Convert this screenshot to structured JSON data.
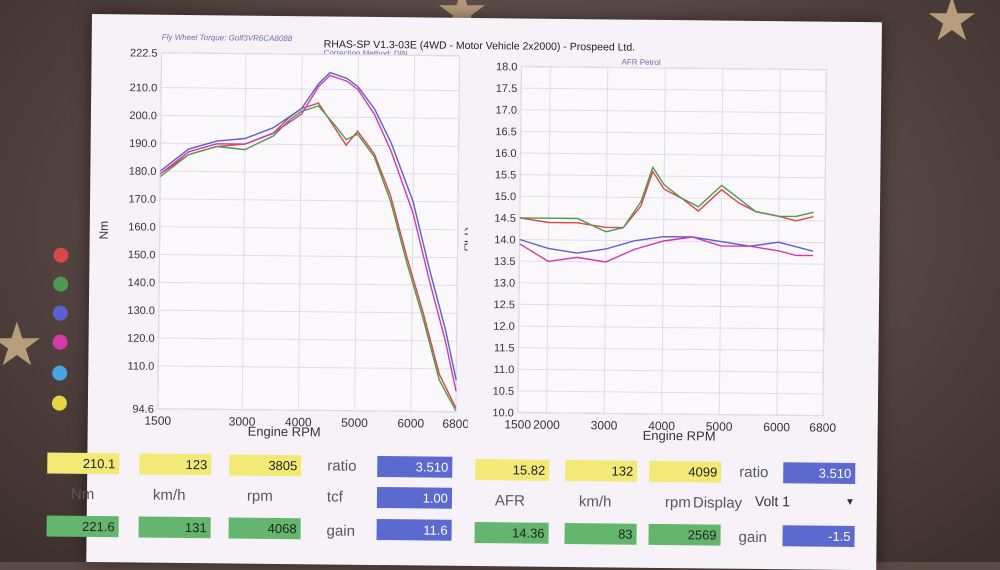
{
  "header": {
    "title": "RHAS-SP V1.3-03E  (4WD - Motor Vehicle 2x2000) - Prospeed Ltd.",
    "subtitle_left": "Fly Wheel Torque: Golf3VR6CA8088",
    "correction": "Correction Method: DIN",
    "right_panel_title": "AFR Petrol"
  },
  "colors": {
    "red": "#d94848",
    "green": "#4f9a52",
    "blue": "#5c5fd0",
    "magenta": "#d23aa8",
    "cyan": "#4aa3e0",
    "yellow": "#e8d542"
  },
  "chart_data": [
    {
      "type": "line",
      "title": "",
      "xlabel": "Engine RPM",
      "ylabel": "Nm",
      "xlim": [
        1500,
        6800
      ],
      "ylim": [
        94.6,
        222.5
      ],
      "x_ticks": [
        "1500",
        "3000",
        "4000",
        "5000",
        "6000",
        "6800"
      ],
      "y_ticks": [
        "222.5",
        "210.0",
        "200.0",
        "190.0",
        "180.0",
        "170.0",
        "160.0",
        "150.0",
        "140.0",
        "130.0",
        "120.0",
        "110.0",
        "94.6"
      ],
      "grid": true,
      "series": [
        {
          "color": "red",
          "x": [
            1500,
            2000,
            2500,
            3000,
            3500,
            3800,
            4000,
            4300,
            4600,
            4800,
            5000,
            5300,
            5600,
            5900,
            6200,
            6500,
            6800
          ],
          "y": [
            179,
            186,
            189,
            190,
            194,
            200,
            203,
            205,
            196,
            190,
            195,
            187,
            172,
            150,
            130,
            108,
            96
          ]
        },
        {
          "color": "green",
          "x": [
            1500,
            2000,
            2500,
            3000,
            3500,
            3800,
            4000,
            4300,
            4600,
            4800,
            5000,
            5300,
            5600,
            5900,
            6200,
            6500,
            6800
          ],
          "y": [
            178,
            186,
            189,
            188,
            193,
            199,
            202,
            204,
            197,
            192,
            194,
            186,
            170,
            148,
            128,
            106,
            95
          ]
        },
        {
          "color": "blue",
          "x": [
            1500,
            2000,
            2500,
            3000,
            3500,
            4000,
            4300,
            4500,
            4800,
            5000,
            5300,
            5600,
            6000,
            6300,
            6600,
            6800
          ],
          "y": [
            180,
            188,
            191,
            192,
            196,
            203,
            212,
            216,
            214,
            211,
            203,
            191,
            170,
            146,
            124,
            106
          ]
        },
        {
          "color": "magenta",
          "x": [
            1500,
            2000,
            2500,
            3000,
            3500,
            4000,
            4300,
            4500,
            4800,
            5000,
            5300,
            5600,
            6000,
            6300,
            6600,
            6800
          ],
          "y": [
            179,
            187,
            190,
            190,
            194,
            201,
            211,
            215,
            213,
            210,
            201,
            188,
            166,
            142,
            120,
            102
          ]
        }
      ]
    },
    {
      "type": "line",
      "title": "AFR Petrol",
      "xlabel": "Engine RPM",
      "ylabel": "AFR",
      "xlim": [
        1500,
        6800
      ],
      "ylim": [
        10.0,
        18.0
      ],
      "x_ticks": [
        "1500",
        "2000",
        "3000",
        "4000",
        "5000",
        "6000",
        "6800"
      ],
      "y_ticks": [
        "18.0",
        "17.5",
        "17.0",
        "16.5",
        "16.0",
        "15.5",
        "15.0",
        "14.5",
        "14.0",
        "13.5",
        "13.0",
        "12.5",
        "12.0",
        "11.5",
        "11.0",
        "10.5",
        "10.0"
      ],
      "grid": true,
      "series": [
        {
          "color": "red",
          "x": [
            1500,
            2000,
            2500,
            3000,
            3300,
            3600,
            3800,
            4000,
            4300,
            4600,
            5000,
            5300,
            5600,
            6000,
            6300,
            6600
          ],
          "y": [
            14.5,
            14.4,
            14.4,
            14.3,
            14.3,
            14.8,
            15.6,
            15.2,
            15.0,
            14.7,
            15.2,
            14.9,
            14.7,
            14.6,
            14.5,
            14.6
          ]
        },
        {
          "color": "green",
          "x": [
            1500,
            2000,
            2500,
            3000,
            3300,
            3600,
            3800,
            4000,
            4300,
            4600,
            5000,
            5300,
            5600,
            6000,
            6300,
            6600
          ],
          "y": [
            14.5,
            14.5,
            14.5,
            14.2,
            14.3,
            14.9,
            15.7,
            15.3,
            15.0,
            14.8,
            15.3,
            15.0,
            14.7,
            14.6,
            14.6,
            14.7
          ]
        },
        {
          "color": "blue",
          "x": [
            1500,
            2000,
            2500,
            3000,
            3500,
            4000,
            4500,
            5000,
            5500,
            6000,
            6300,
            6600
          ],
          "y": [
            14.0,
            13.8,
            13.7,
            13.8,
            14.0,
            14.1,
            14.1,
            14.0,
            13.9,
            14.0,
            13.9,
            13.8
          ]
        },
        {
          "color": "magenta",
          "x": [
            1500,
            2000,
            2500,
            3000,
            3500,
            4000,
            4500,
            5000,
            5500,
            6000,
            6300,
            6600
          ],
          "y": [
            13.9,
            13.5,
            13.6,
            13.5,
            13.8,
            14.0,
            14.1,
            13.9,
            13.9,
            13.8,
            13.7,
            13.7
          ]
        }
      ]
    }
  ],
  "readouts": {
    "left": {
      "row1": [
        "210.1",
        "123",
        "3805"
      ],
      "row2": [
        "Nm",
        "km/h",
        "rpm"
      ],
      "row3": [
        "221.6",
        "131",
        "4068"
      ],
      "ratio_label": "ratio",
      "ratio_value": "3.510",
      "tcf_label": "tcf",
      "tcf_value": "1.00",
      "gain_label": "gain",
      "gain_value": "11.6"
    },
    "right": {
      "row1": [
        "15.82",
        "132",
        "4099"
      ],
      "row2": [
        "AFR",
        "km/h",
        "rpm"
      ],
      "row3": [
        "14.36",
        "83",
        "2569"
      ],
      "ratio_label": "ratio",
      "ratio_value": "3.510",
      "display_label": "Display",
      "display_value": "Volt 1",
      "gain_label": "gain",
      "gain_value": "-1.5"
    }
  }
}
